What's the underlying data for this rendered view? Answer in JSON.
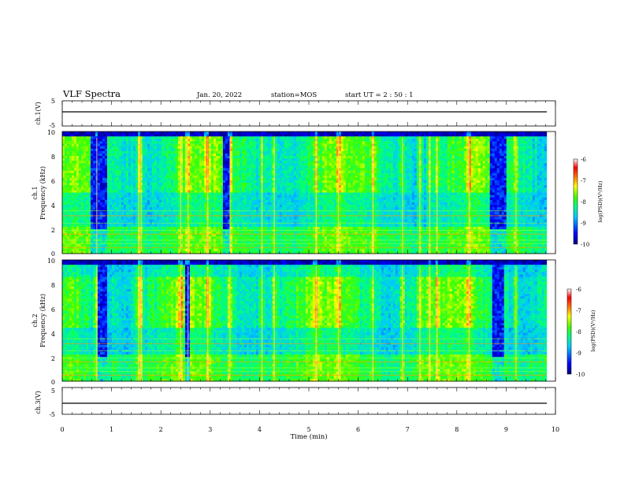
{
  "header": {
    "title": "VLF Spectra",
    "date": "Jan. 20, 2022",
    "station": "station=MOS",
    "start": "start  UT =   2 : 50 : 1"
  },
  "chart_data": [
    {
      "type": "line",
      "name": "ch1-waveform",
      "ylabel": "ch.1(V)",
      "ylim": [
        -5,
        5
      ],
      "yticks": [
        5,
        -5
      ],
      "x": [
        0,
        9.82
      ],
      "y": [
        0,
        0
      ]
    },
    {
      "type": "heatmap",
      "name": "ch1-spectrogram",
      "ylabel_1": "ch.1",
      "ylabel_2": "Frequency  (kHz)",
      "ylim": [
        0,
        10
      ],
      "yticks": [
        10,
        8,
        6,
        4,
        2,
        0
      ],
      "xlim": [
        0,
        9.82
      ],
      "colorbar": {
        "label": "log(PSD)(V²/Hz)",
        "ticks": [
          "-6",
          "-7",
          "-8",
          "-9",
          "-10"
        ],
        "range": [
          -10,
          -6
        ],
        "colors": [
          "#000080",
          "#0000ff",
          "#00ffff",
          "#00ff00",
          "#ffff00",
          "#ff8000",
          "#ff0000",
          "#ffffff"
        ]
      },
      "bright_bursts_min": [
        0.7,
        1.55,
        1.6,
        2.4,
        2.55,
        2.95,
        3.4,
        4.05,
        4.3,
        5.15,
        5.6,
        6.3,
        6.9,
        7.25,
        7.45,
        7.6,
        8.25,
        9.2
      ],
      "quiet_gaps_min": [
        [
          0.58,
          0.9
        ],
        [
          3.25,
          3.4
        ],
        [
          8.65,
          9.0
        ]
      ],
      "emission_band_khz": [
        5,
        9.5
      ]
    },
    {
      "type": "heatmap",
      "name": "ch2-spectrogram",
      "ylabel_1": "ch.2",
      "ylabel_2": "Frequency  (kHz)",
      "ylim": [
        0,
        10
      ],
      "yticks": [
        10,
        8,
        6,
        4,
        2,
        0
      ],
      "xlim": [
        0,
        9.82
      ],
      "colorbar": {
        "label": "log(PSD)(V²/Hz)",
        "ticks": [
          "-6",
          "-7",
          "-8",
          "-9",
          "-10"
        ],
        "range": [
          -10,
          -6
        ]
      },
      "bright_bursts_min": [
        0.7,
        1.55,
        1.6,
        2.4,
        2.55,
        2.95,
        3.4,
        4.05,
        4.3,
        5.15,
        5.6,
        6.3,
        6.9,
        7.25,
        7.45,
        7.6,
        8.25,
        9.2
      ],
      "quiet_gaps_min": [
        [
          0.7,
          0.9
        ],
        [
          2.5,
          2.6
        ],
        [
          8.7,
          8.95
        ]
      ],
      "emission_band_khz": [
        4.5,
        8.5
      ]
    },
    {
      "type": "line",
      "name": "ch3-waveform",
      "ylabel": "ch.3(V)",
      "ylim": [
        -5,
        5
      ],
      "yticks": [
        5,
        -5
      ],
      "x": [
        0,
        9.82
      ],
      "y": [
        0,
        0
      ]
    }
  ],
  "xaxis": {
    "label": "Time  (min)",
    "ticks": [
      "0",
      "1",
      "2",
      "3",
      "4",
      "5",
      "6",
      "7",
      "8",
      "9",
      "10"
    ],
    "range": [
      0,
      10
    ]
  }
}
